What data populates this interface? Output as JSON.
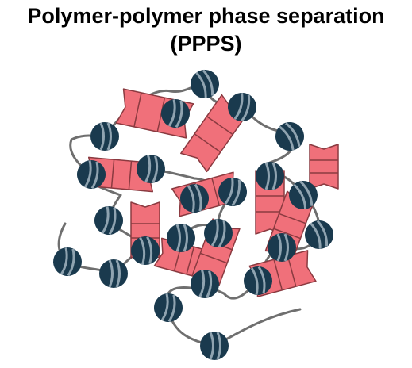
{
  "title": {
    "line1": "Polymer-polymer phase separation",
    "line2": "(PPPS)"
  },
  "colors": {
    "nucleosome": "#1a3a4e",
    "nucleosome_band": "#8fa3b0",
    "chain": "#6f6f6f",
    "protein": "#f0707a",
    "protein_outline": "#8a3a40"
  },
  "icons": {
    "nucleosome": "nucleosome-icon",
    "protein": "bridging-protein-icon"
  }
}
